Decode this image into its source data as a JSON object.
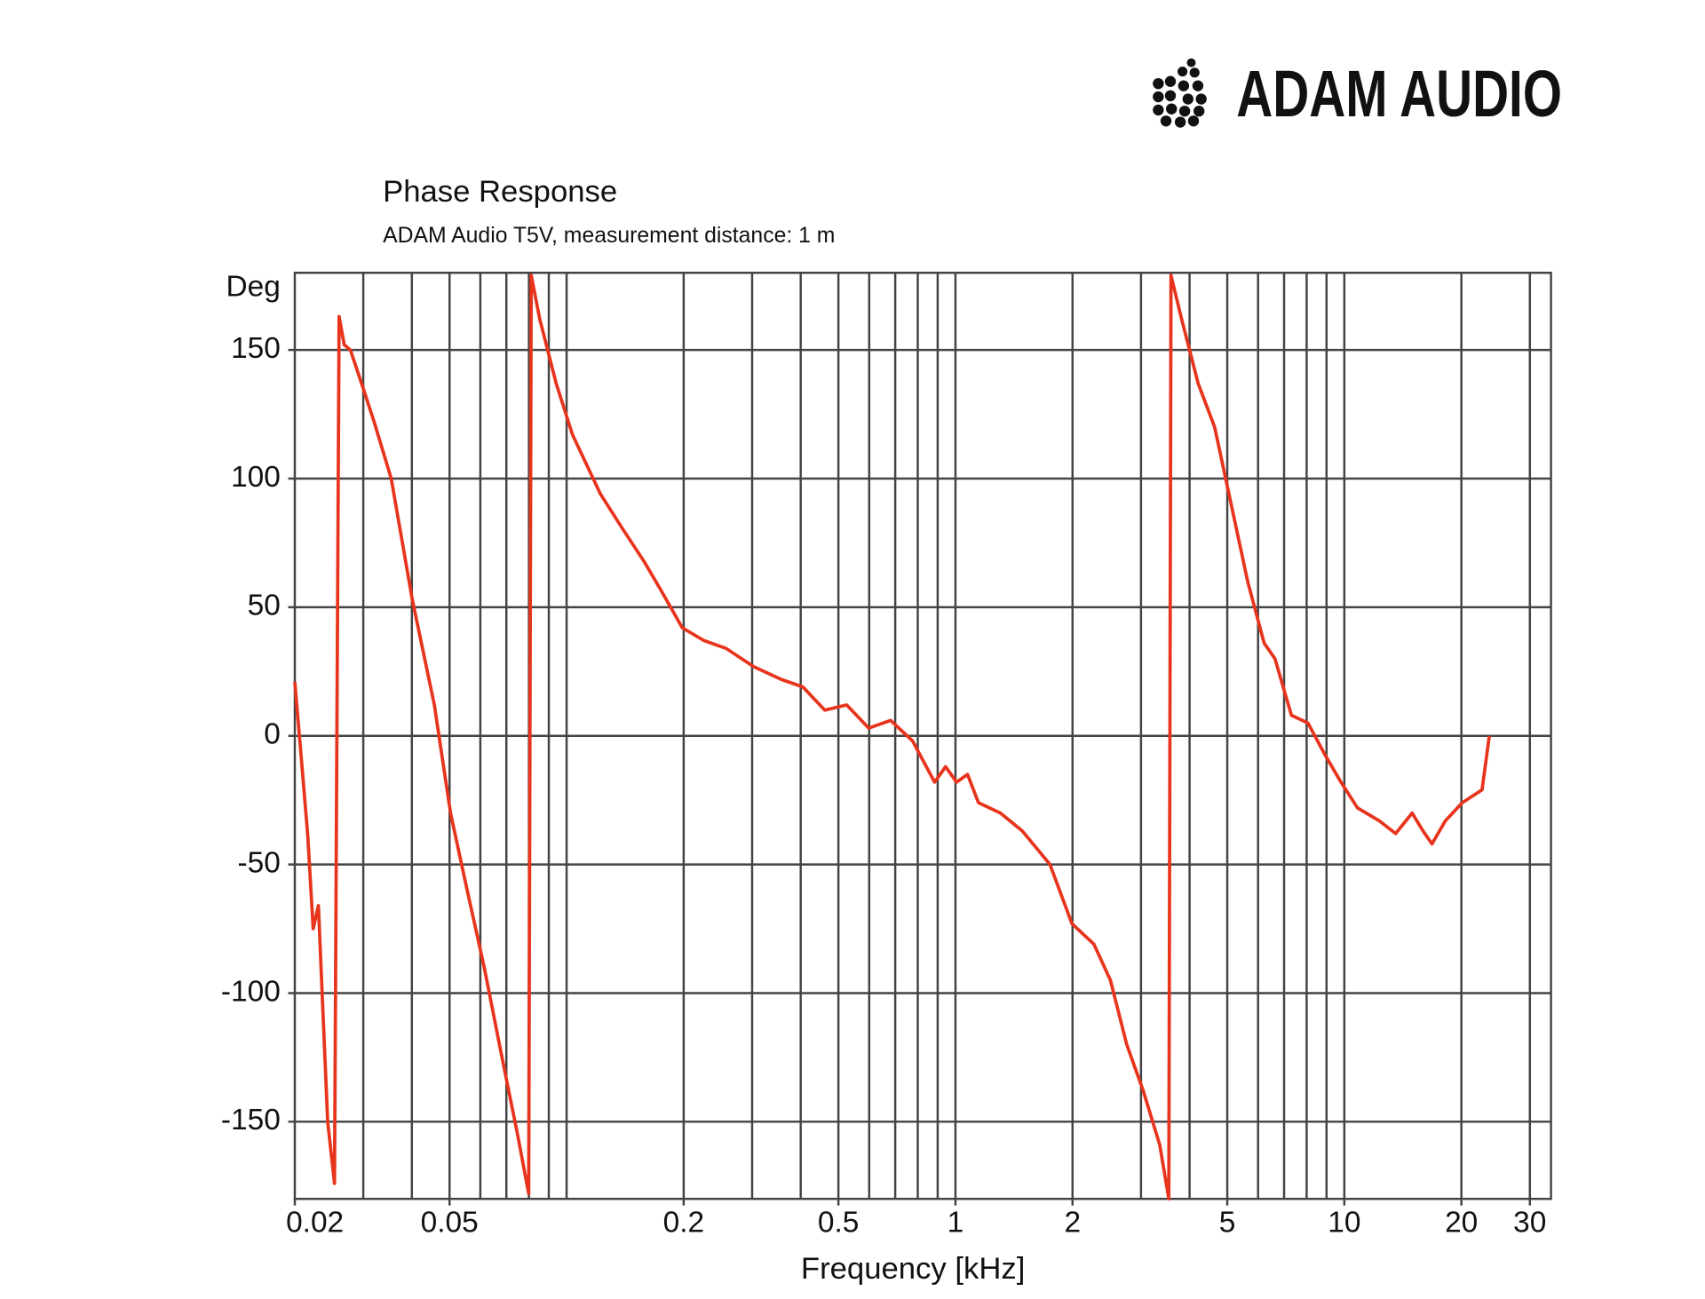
{
  "chart_data": {
    "type": "line",
    "brand": "ADAM AUDIO",
    "title": "Phase Response",
    "subtitle": "ADAM Audio T5V, measurement distance: 1 m",
    "x_label": "Frequency [kHz]",
    "y_label": "Deg",
    "log_x": true,
    "grid": true,
    "xlim": [
      0.02,
      34
    ],
    "ylim": [
      -180,
      180
    ],
    "xticks": [
      0.02,
      0.05,
      0.2,
      0.5,
      1,
      2,
      5,
      10,
      20,
      30
    ],
    "yticks": [
      -150,
      -100,
      -50,
      0,
      50,
      100,
      150
    ],
    "x": [
      0.02,
      0.0209,
      0.0216,
      0.0223,
      0.023,
      0.0235,
      0.0243,
      0.0253,
      0.026,
      0.0268,
      0.0278,
      0.03,
      0.032,
      0.0354,
      0.0401,
      0.0457,
      0.0503,
      0.0555,
      0.0614,
      0.0678,
      0.0748,
      0.0799,
      0.0811,
      0.0853,
      0.094,
      0.1036,
      0.1222,
      0.1386,
      0.1579,
      0.1742,
      0.1984,
      0.2258,
      0.2571,
      0.3019,
      0.3555,
      0.4052,
      0.4612,
      0.5253,
      0.5984,
      0.6813,
      0.7758,
      0.8837,
      0.9432,
      1.0065,
      1.074,
      1.146,
      1.305,
      1.486,
      1.75,
      1.993,
      2.27,
      2.503,
      2.757,
      3.04,
      3.352,
      3.537,
      3.583,
      3.816,
      4.208,
      4.64,
      5.117,
      5.642,
      6.221,
      6.631,
      7.311,
      8.062,
      8.89,
      9.803,
      10.81,
      12.29,
      13.55,
      14.94,
      15.94,
      16.8,
      18.2,
      20.1,
      22.6,
      23.6
    ],
    "series": [
      {
        "color": "#e8341c",
        "values": [
          21,
          -13,
          -39,
          -75,
          -66,
          -99,
          -150,
          -174,
          163,
          152,
          150,
          135,
          122,
          100,
          53,
          12,
          -30,
          -60,
          -90,
          -123,
          -155,
          -178,
          179,
          162,
          137,
          117,
          94,
          81,
          68,
          57,
          42,
          37,
          34,
          27,
          22,
          19,
          10,
          12,
          3,
          6,
          -2,
          -18,
          -12,
          -18,
          -15,
          -26,
          -30,
          -37,
          -50,
          -73,
          -81,
          -95,
          -120,
          -138,
          -159,
          -180,
          179,
          162,
          137,
          120,
          90,
          60,
          36,
          30,
          8,
          5,
          -7,
          -18,
          -28,
          -33,
          -38,
          -30,
          -37,
          -42,
          -33,
          -26,
          -21,
          0
        ]
      }
    ]
  }
}
